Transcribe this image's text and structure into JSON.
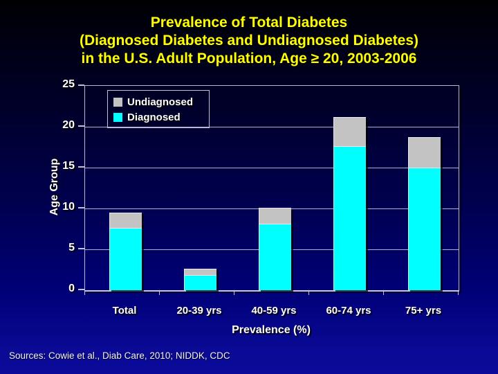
{
  "slide": {
    "title_lines": [
      "Prevalence of Total Diabetes",
      "(Diagnosed Diabetes and Undiagnosed Diabetes)",
      "in the U.S. Adult Population, Age ≥ 20, 2003-2006"
    ],
    "source": "Sources: Cowie et al., Diab Care, 2010; NIDDK, CDC"
  },
  "colors": {
    "title": "#ffff00",
    "diagnosed": "#00ffff",
    "undiagnosed": "#c3c3c3",
    "axis_text": "#ffffff",
    "gridline": "#b2b2ce",
    "background_top": "#000002",
    "background_bottom": "#0b0b99"
  },
  "chart_data": {
    "type": "bar",
    "stacked": true,
    "title": "Prevalence of Total Diabetes (Diagnosed Diabetes and Undiagnosed Diabetes) in the U.S. Adult Population, Age ≥ 20, 2003-2006",
    "categories": [
      "Total",
      "20-39 yrs",
      "40-59 yrs",
      "60-74 yrs",
      "75+ yrs"
    ],
    "series": [
      {
        "name": "Diagnosed",
        "color": "#00ffff",
        "values": [
          7.6,
          1.9,
          8.1,
          17.6,
          15.0
        ]
      },
      {
        "name": "Undiagnosed",
        "color": "#c3c3c3",
        "values": [
          1.9,
          0.7,
          2.0,
          3.6,
          3.7
        ]
      }
    ],
    "xlabel": "Prevalence (%)",
    "ylabel": "Age Group",
    "ylim": [
      0,
      25
    ],
    "yticks": [
      0,
      5,
      10,
      15,
      20,
      25
    ],
    "grid": true,
    "legend_position": "top-left",
    "legend_order": [
      "Undiagnosed",
      "Diagnosed"
    ]
  }
}
